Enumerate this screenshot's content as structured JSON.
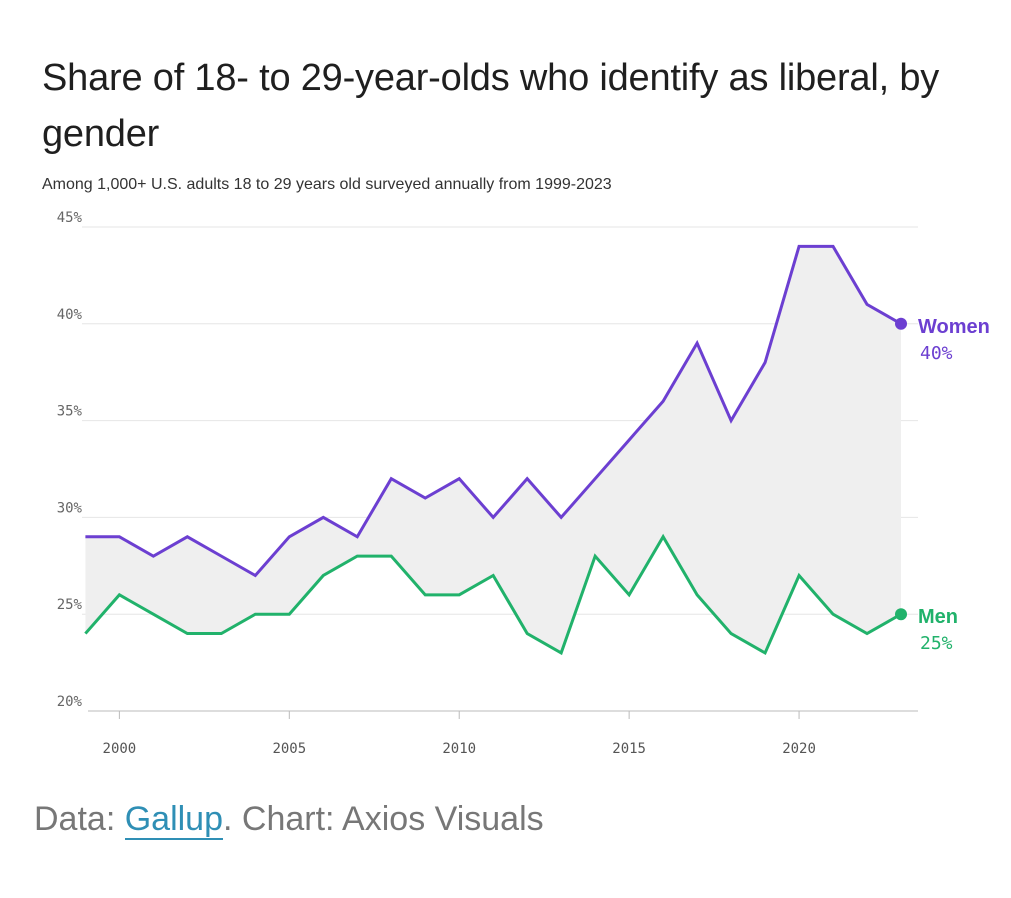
{
  "title": "Share of 18- to 29-year-olds who identify as liberal, by gender",
  "subtitle": "Among 1,000+ U.S. adults 18 to 29 years old surveyed annually from 1999-2023",
  "source": {
    "prefix": "Data: ",
    "link": "Gallup",
    "suffix": ". Chart: Axios Visuals"
  },
  "colors": {
    "women": "#6c3fd1",
    "men": "#21b26b",
    "fill": "#efefef",
    "grid": "#e6e6e6"
  },
  "chart_data": {
    "type": "line",
    "title": "Share of 18- to 29-year-olds who identify as liberal, by gender",
    "xlabel": "",
    "ylabel": "",
    "x": [
      1999,
      2000,
      2001,
      2002,
      2003,
      2004,
      2005,
      2006,
      2007,
      2008,
      2009,
      2010,
      2011,
      2012,
      2013,
      2014,
      2015,
      2016,
      2017,
      2018,
      2019,
      2020,
      2021,
      2022,
      2023
    ],
    "xlim": [
      1998.9,
      2023.5
    ],
    "ylim": [
      20,
      45
    ],
    "yticks": [
      20,
      25,
      30,
      35,
      40,
      45
    ],
    "ytick_labels": [
      "20%",
      "25%",
      "30%",
      "35%",
      "40%",
      "45%"
    ],
    "xticks": [
      2000,
      2005,
      2010,
      2015,
      2020
    ],
    "xtick_labels": [
      "2000",
      "2005",
      "2010",
      "2015",
      "2020"
    ],
    "series": [
      {
        "name": "Women",
        "end_label": "40%",
        "values": [
          29,
          29,
          28,
          29,
          28,
          27,
          29,
          30,
          29,
          32,
          31,
          32,
          30,
          32,
          30,
          32,
          34,
          36,
          39,
          35,
          38,
          44,
          44,
          41,
          40
        ]
      },
      {
        "name": "Men",
        "end_label": "25%",
        "values": [
          24,
          26,
          25,
          24,
          24,
          25,
          25,
          27,
          28,
          28,
          26,
          26,
          27,
          24,
          23,
          28,
          26,
          29,
          26,
          24,
          23,
          27,
          25,
          24,
          25
        ]
      }
    ]
  }
}
